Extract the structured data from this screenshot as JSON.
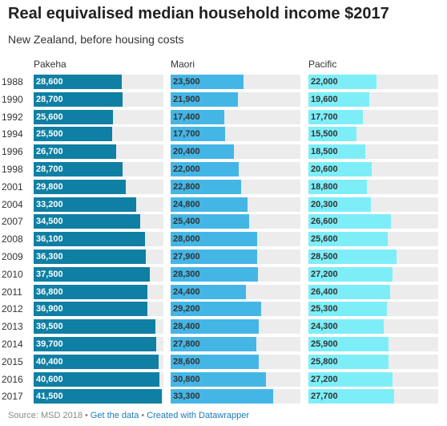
{
  "title": "Real equivalised median household income $2017",
  "subtitle": "New Zealand, before housing costs",
  "footer": {
    "source": "Source: MSD 2018",
    "get_data": "Get the data",
    "created": "Created with Datawrapper",
    "separator": "•"
  },
  "colors": {
    "Pakeha": "#0f7fa3",
    "Maori": "#44b6e6",
    "Pacific": "#7deef8",
    "track": "#ececec"
  },
  "chart_data": {
    "type": "bar",
    "title": "Real equivalised median household income $2017",
    "subtitle": "New Zealand, before housing costs",
    "xlabel": "",
    "ylabel": "",
    "xlim": [
      0,
      42000
    ],
    "grid": false,
    "categories": [
      "1988",
      "1990",
      "1992",
      "1994",
      "1996",
      "1998",
      "2001",
      "2004",
      "2007",
      "2008",
      "2009",
      "2010",
      "2011",
      "2012",
      "2013",
      "2014",
      "2015",
      "2016",
      "2017"
    ],
    "series": [
      {
        "name": "Pakeha",
        "values": [
          28600,
          28700,
          25600,
          25500,
          26700,
          28700,
          29800,
          33200,
          34500,
          36100,
          36300,
          37500,
          36800,
          36900,
          39500,
          39700,
          40400,
          40600,
          41500
        ],
        "labels": [
          "28,600",
          "28,700",
          "25,600",
          "25,500",
          "26,700",
          "28,700",
          "29,800",
          "33,200",
          "34,500",
          "36,100",
          "36,300",
          "37,500",
          "36,800",
          "36,900",
          "39,500",
          "39,700",
          "40,400",
          "40,600",
          "41,500"
        ]
      },
      {
        "name": "Maori",
        "values": [
          23500,
          21900,
          17400,
          17700,
          20400,
          22000,
          22800,
          24800,
          25400,
          28000,
          27900,
          28300,
          24400,
          29200,
          28400,
          27800,
          28600,
          30800,
          33300
        ],
        "labels": [
          "23,500",
          "21,900",
          "17,400",
          "17,700",
          "20,400",
          "22,000",
          "22,800",
          "24,800",
          "25,400",
          "28,000",
          "27,900",
          "28,300",
          "24,400",
          "29,200",
          "28,400",
          "27,800",
          "28,600",
          "30,800",
          "33,300"
        ]
      },
      {
        "name": "Pacific",
        "values": [
          22000,
          19600,
          17700,
          15500,
          18500,
          20600,
          18800,
          20300,
          26600,
          25600,
          28500,
          27200,
          26400,
          25300,
          24300,
          25900,
          25800,
          27200,
          27700
        ],
        "labels": [
          "22,000",
          "19,600",
          "17,700",
          "15,500",
          "18,500",
          "20,600",
          "18,800",
          "20,300",
          "26,600",
          "25,600",
          "28,500",
          "27,200",
          "26,400",
          "25,300",
          "24,300",
          "25,900",
          "25,800",
          "27,200",
          "27,700"
        ]
      }
    ]
  }
}
